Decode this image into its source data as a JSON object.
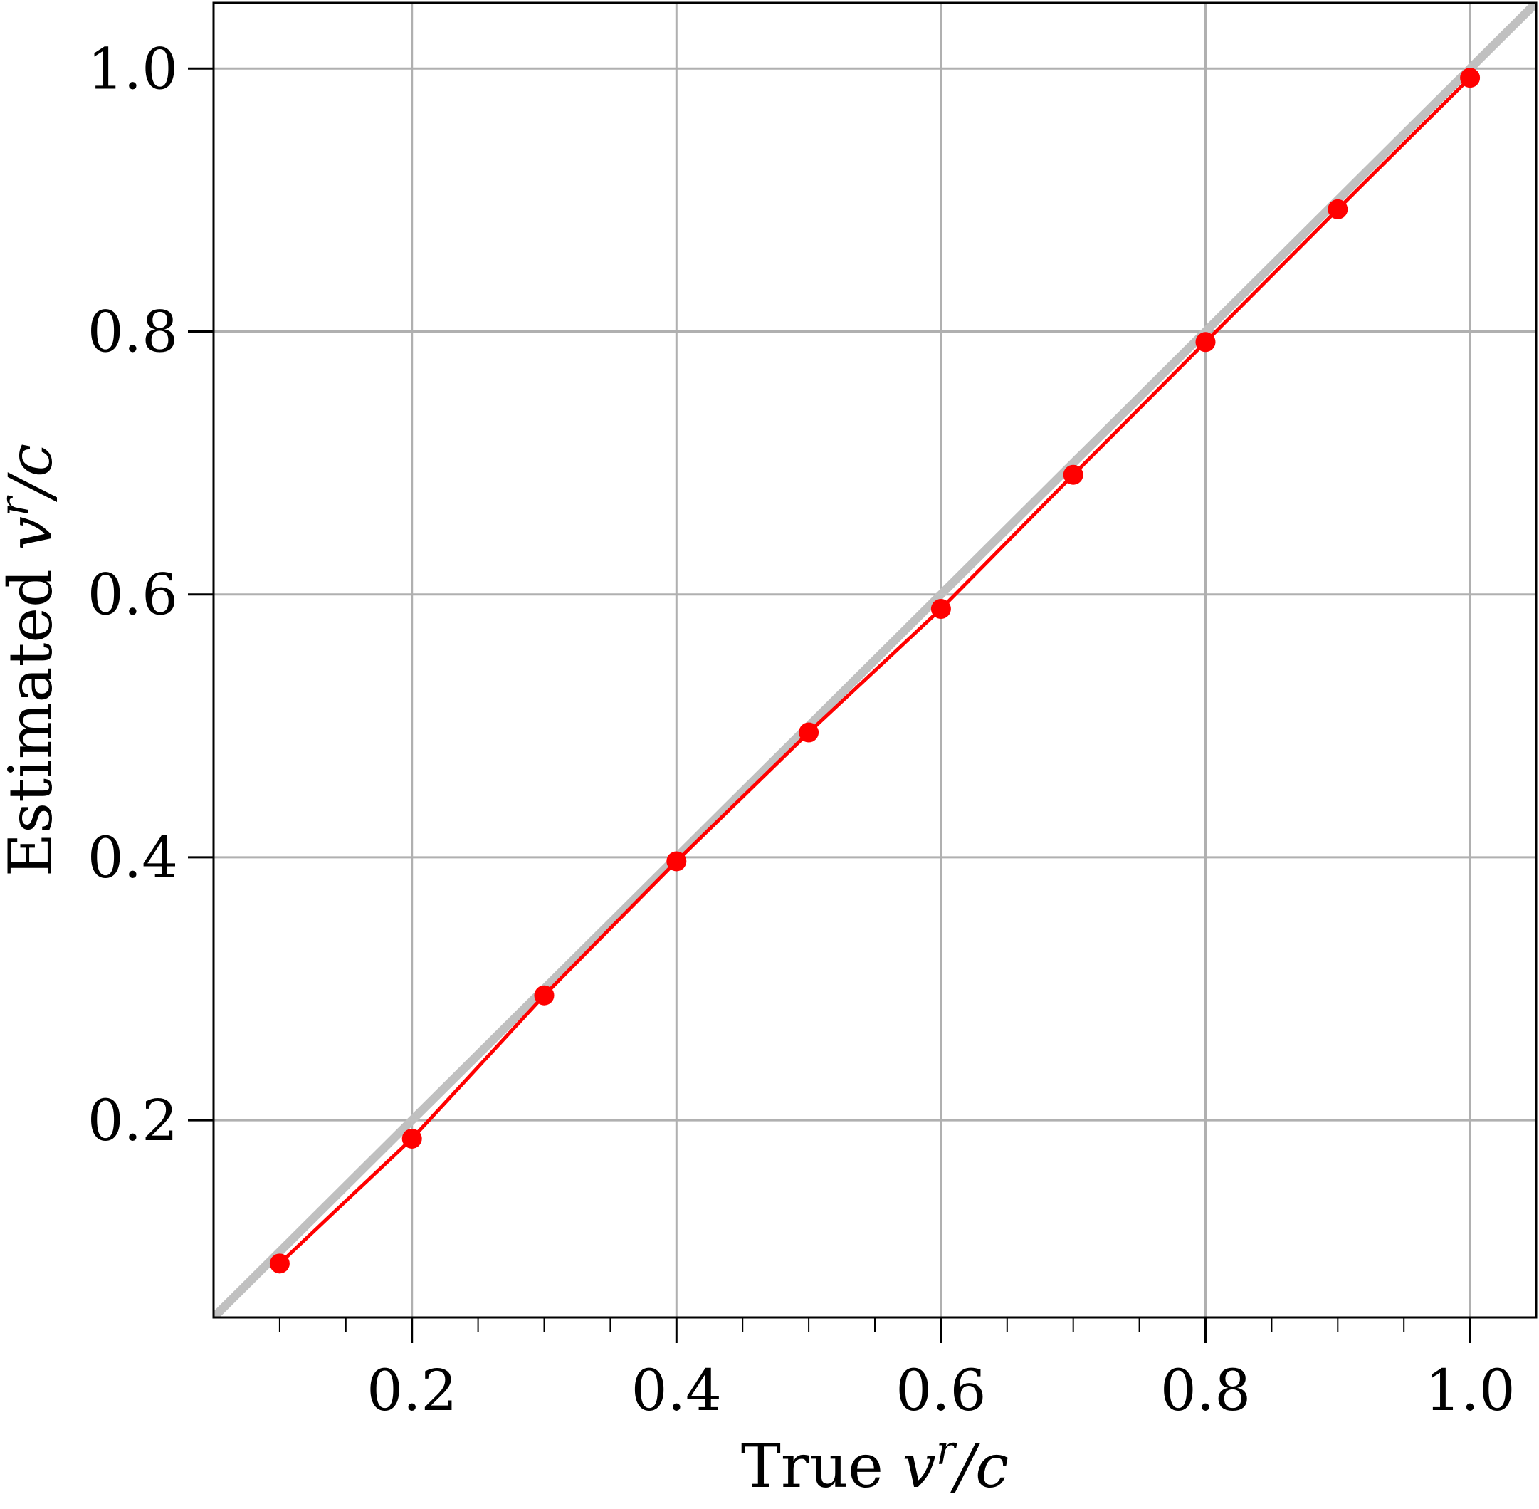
{
  "chart_data": {
    "type": "line",
    "title": "",
    "xlabel": {
      "prefix": "True ",
      "var": "v",
      "sup": "r",
      "suffix": "/c"
    },
    "ylabel": {
      "prefix": "Estimated ",
      "var": "v",
      "sup": "r",
      "suffix": "/c"
    },
    "xlim": [
      0.05,
      1.05
    ],
    "ylim": [
      0.05,
      1.05
    ],
    "grid": true,
    "x_ticks": [
      {
        "value": 0.2,
        "label": "0.2"
      },
      {
        "value": 0.4,
        "label": "0.4"
      },
      {
        "value": 0.6,
        "label": "0.6"
      },
      {
        "value": 0.8,
        "label": "0.8"
      },
      {
        "value": 1.0,
        "label": "1.0"
      }
    ],
    "x_minor_ticks": [
      0.1,
      0.15,
      0.25,
      0.3,
      0.35,
      0.45,
      0.5,
      0.55,
      0.65,
      0.7,
      0.75,
      0.85,
      0.9,
      0.95
    ],
    "y_ticks": [
      {
        "value": 0.2,
        "label": "0.2"
      },
      {
        "value": 0.4,
        "label": "0.4"
      },
      {
        "value": 0.6,
        "label": "0.6"
      },
      {
        "value": 0.8,
        "label": "0.8"
      },
      {
        "value": 1.0,
        "label": "1.0"
      }
    ],
    "reference_line": {
      "x": [
        0.05,
        1.05
      ],
      "y": [
        0.05,
        1.05
      ],
      "color": "#c0c0c0"
    },
    "series": [
      {
        "color": "#ff0000",
        "x": [
          0.1,
          0.2,
          0.3,
          0.4,
          0.5,
          0.6,
          0.7,
          0.8,
          0.9,
          1.0
        ],
        "y": [
          0.091,
          0.186,
          0.295,
          0.397,
          0.495,
          0.589,
          0.691,
          0.792,
          0.893,
          0.993
        ]
      }
    ]
  }
}
